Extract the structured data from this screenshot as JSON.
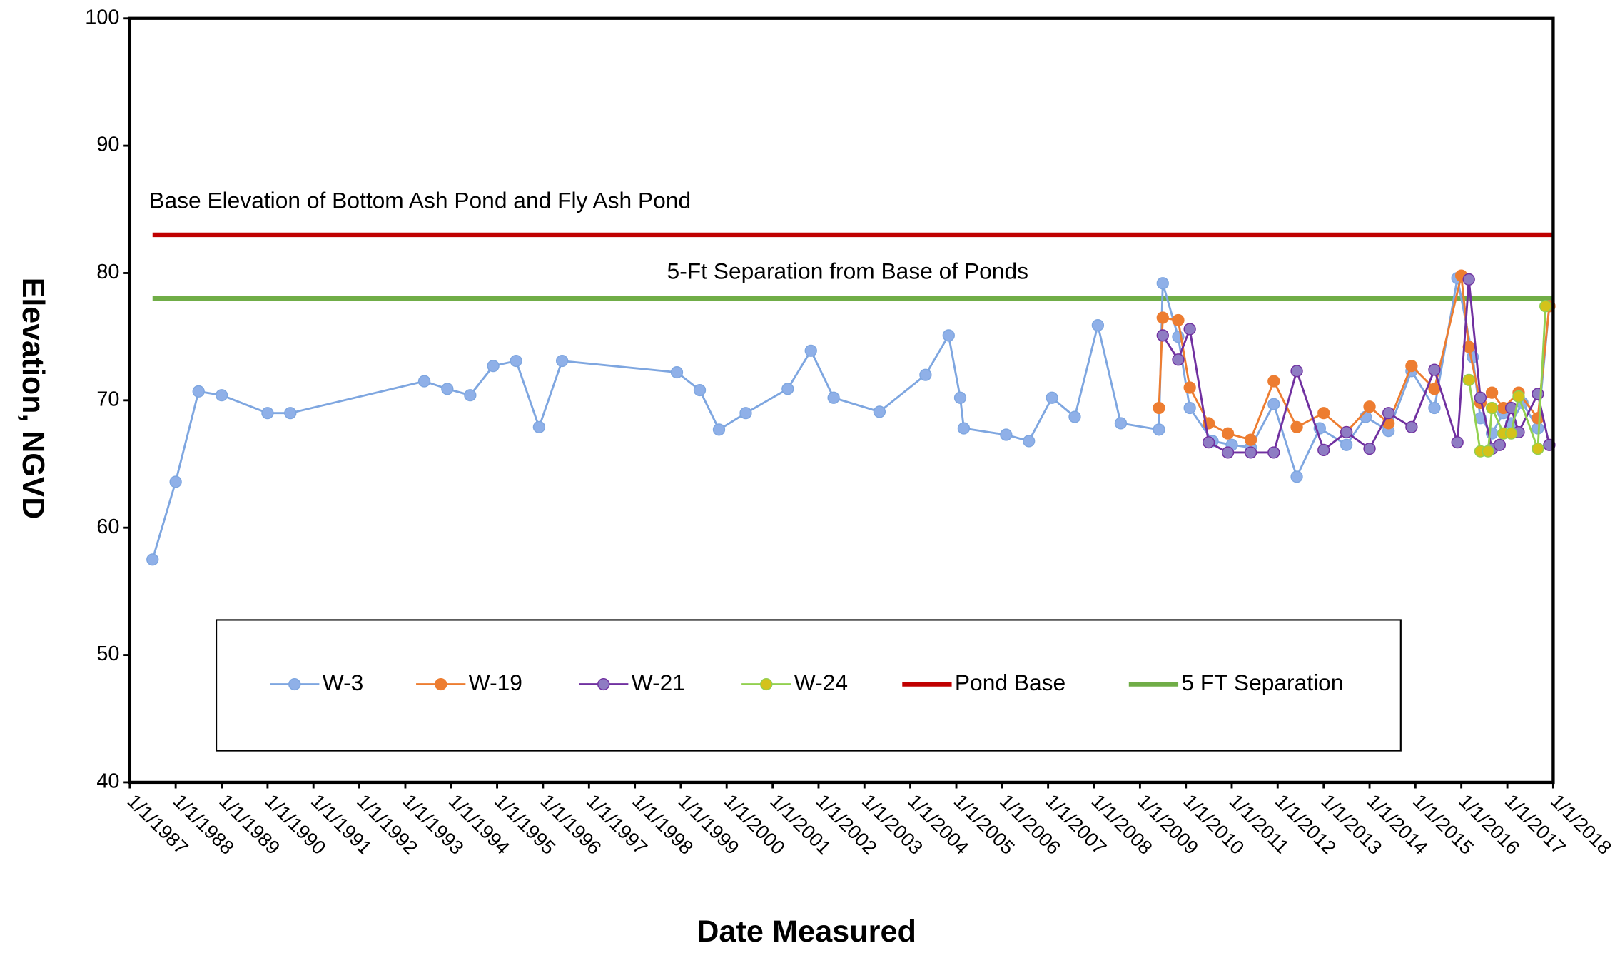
{
  "chart_data": {
    "type": "line",
    "y_label": "Elevation, NGVD",
    "x_label": "Date Measured",
    "annotations": [
      "Base Elevation of Bottom Ash Pond and Fly Ash Pond",
      "5-Ft Separation from Base of Ponds"
    ],
    "ylim": [
      40,
      100
    ],
    "yticks": [
      40,
      50,
      60,
      70,
      80,
      90,
      100
    ],
    "xlim": [
      "1/1/1987",
      "1/1/2018"
    ],
    "xticks": [
      "1/1/1987",
      "1/1/1988",
      "1/1/1989",
      "1/1/1990",
      "1/1/1991",
      "1/1/1992",
      "1/1/1993",
      "1/1/1994",
      "1/1/1995",
      "1/1/1996",
      "1/1/1997",
      "1/1/1998",
      "1/1/1999",
      "1/1/2000",
      "1/1/2001",
      "1/1/2002",
      "1/1/2003",
      "1/1/2004",
      "1/1/2005",
      "1/1/2006",
      "1/1/2007",
      "1/1/2008",
      "1/1/2009",
      "1/1/2010",
      "1/1/2011",
      "1/1/2012",
      "1/1/2013",
      "1/1/2014",
      "1/1/2015",
      "1/1/2016",
      "1/1/2017",
      "1/1/2018"
    ],
    "grid": false,
    "legend_position": "bottom",
    "series": [
      {
        "name": "Pond Base",
        "color": "#c00000",
        "markers": false,
        "x": [
          "7/1/1987",
          "1/1/2018"
        ],
        "values": [
          83,
          83
        ]
      },
      {
        "name": "5 FT Separation",
        "color": "#70ad47",
        "markers": false,
        "x": [
          "7/1/1987",
          "1/1/2018"
        ],
        "values": [
          78,
          78
        ]
      },
      {
        "name": "W-3",
        "color": "#7ea6e0",
        "marker_color": "#8fb0e8",
        "markers": true,
        "x": [
          "7/1/1987",
          "1/1/1988",
          "7/1/1988",
          "1/1/1989",
          "1/1/1990",
          "7/1/1990",
          "6/1/1993",
          "12/1/1993",
          "6/1/1994",
          "12/1/1994",
          "6/1/1995",
          "12/1/1995",
          "6/1/1996",
          "12/1/1998",
          "6/1/1999",
          "11/1/1999",
          "6/1/2000",
          "5/1/2001",
          "11/1/2001",
          "5/1/2002",
          "5/1/2003",
          "5/1/2004",
          "11/1/2004",
          "2/1/2005",
          "3/1/2005",
          "2/1/2006",
          "8/1/2006",
          "2/1/2007",
          "8/1/2007",
          "2/1/2008",
          "8/1/2008",
          "6/1/2009",
          "7/1/2009",
          "11/1/2009",
          "2/1/2010",
          "8/1/2010",
          "1/1/2011",
          "6/1/2011",
          "12/1/2011",
          "6/1/2012",
          "12/1/2012",
          "7/1/2013",
          "12/1/2013",
          "6/1/2014",
          "12/1/2014",
          "6/1/2015",
          "12/1/2015",
          "4/1/2016",
          "6/1/2016",
          "9/1/2016",
          "12/1/2016",
          "2/1/2017",
          "5/1/2017",
          "9/1/2017",
          "12/1/2017"
        ],
        "values": [
          57.5,
          63.6,
          70.7,
          70.4,
          69.0,
          69.0,
          71.5,
          70.9,
          70.4,
          72.7,
          73.1,
          67.9,
          73.1,
          72.2,
          70.8,
          67.7,
          69.0,
          70.9,
          73.9,
          70.2,
          69.1,
          72.0,
          75.1,
          70.2,
          67.8,
          67.3,
          66.8,
          70.2,
          68.7,
          75.9,
          68.2,
          67.7,
          79.2,
          75.0,
          69.4,
          66.8,
          66.5,
          66.3,
          69.7,
          64.0,
          67.8,
          66.5,
          68.7,
          67.6,
          72.3,
          69.4,
          79.6,
          73.4,
          68.6,
          67.4,
          69.0,
          68.2,
          69.8,
          67.8,
          77.4
        ]
      },
      {
        "name": "W-19",
        "color": "#ed7d31",
        "marker_color": "#ed7d31",
        "markers": true,
        "x": [
          "6/1/2009",
          "7/1/2009",
          "11/1/2009",
          "2/1/2010",
          "7/1/2010",
          "12/1/2010",
          "6/1/2011",
          "12/1/2011",
          "6/1/2012",
          "1/1/2013",
          "7/1/2013",
          "1/1/2014",
          "6/1/2014",
          "12/1/2014",
          "6/1/2015",
          "1/1/2016",
          "3/1/2016",
          "6/1/2016",
          "9/1/2016",
          "12/1/2016",
          "4/1/2017",
          "9/1/2017",
          "12/1/2017"
        ],
        "values": [
          69.4,
          76.5,
          76.3,
          71.0,
          68.2,
          67.4,
          66.9,
          71.5,
          67.9,
          69.0,
          67.5,
          69.5,
          68.2,
          72.7,
          70.9,
          79.8,
          74.2,
          69.8,
          70.6,
          69.4,
          70.6,
          68.6,
          77.4
        ]
      },
      {
        "name": "W-21",
        "color": "#7030a0",
        "marker_color": "#8e7cc3",
        "markers": true,
        "x": [
          "7/1/2009",
          "11/1/2009",
          "2/1/2010",
          "7/1/2010",
          "12/1/2010",
          "6/1/2011",
          "12/1/2011",
          "6/1/2012",
          "1/1/2013",
          "7/1/2013",
          "1/1/2014",
          "6/1/2014",
          "12/1/2014",
          "6/1/2015",
          "12/1/2015",
          "3/1/2016",
          "6/1/2016",
          "9/1/2016",
          "11/1/2016",
          "2/1/2017",
          "4/1/2017",
          "9/1/2017",
          "12/1/2017"
        ],
        "values": [
          75.1,
          73.2,
          75.6,
          66.7,
          65.9,
          65.9,
          65.9,
          72.3,
          66.1,
          67.5,
          66.2,
          69.0,
          67.9,
          72.4,
          66.7,
          79.5,
          70.2,
          66.2,
          66.5,
          69.4,
          67.5,
          70.5,
          66.5
        ]
      },
      {
        "name": "W-24",
        "color": "#92d050",
        "marker_color": "#d4c21a",
        "markers": true,
        "x": [
          "3/1/2016",
          "6/1/2016",
          "8/1/2016",
          "9/1/2016",
          "12/1/2016",
          "2/1/2017",
          "4/1/2017",
          "9/1/2017",
          "11/1/2017"
        ],
        "values": [
          71.6,
          66.0,
          66.0,
          69.4,
          67.4,
          67.4,
          70.3,
          66.2,
          77.4
        ]
      }
    ]
  }
}
